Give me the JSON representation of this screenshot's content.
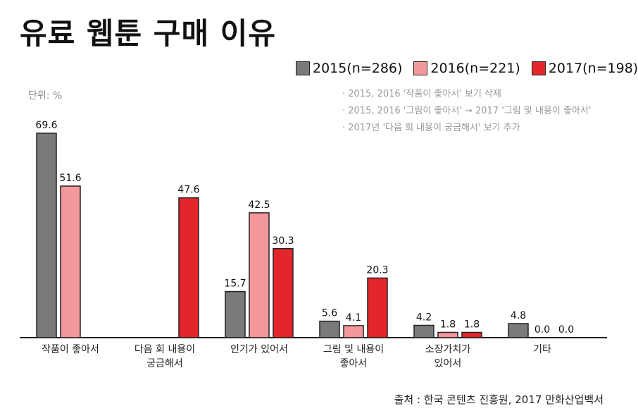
{
  "header": {
    "title": "유료 웹툰 구매 이유"
  },
  "unit_label": "단위: %",
  "notes": [
    "· 2015, 2016 '작품이 좋아서' 보기 삭제",
    "· 2015, 2016 '그림이 좋아서' → 2017 '그림 및 내용이 좋아서'",
    "· 2017년 '다음 회 내용이 궁금해서' 보기 추가"
  ],
  "source": "출처 : 한국 콘텐츠 진흥원, 2017 만화산업백서",
  "colors": {
    "s2015": "#7a7a7a",
    "s2016": "#f3989b",
    "s2017": "#e3262b"
  },
  "chart_data": {
    "type": "bar",
    "title": "유료 웹툰 구매 이유",
    "ylabel": "단위: %",
    "ylim": [
      0,
      72
    ],
    "grid": false,
    "legend_position": "top-right",
    "categories": [
      [
        "작품이 좋아서"
      ],
      [
        "다음 회 내용이",
        "궁금해서"
      ],
      [
        "인기가 있어서"
      ],
      [
        "그림 및 내용이",
        "좋아서"
      ],
      [
        "소장가치가",
        "있어서"
      ],
      [
        "기타"
      ]
    ],
    "series": [
      {
        "name": "2015(n=286)",
        "values": [
          69.6,
          null,
          15.7,
          5.6,
          4.2,
          4.8
        ],
        "labels": [
          "69.6",
          null,
          "15.7",
          "5.6",
          "4.2",
          "4.8"
        ]
      },
      {
        "name": "2016(n=221)",
        "values": [
          51.6,
          null,
          42.5,
          4.1,
          1.8,
          0.0
        ],
        "labels": [
          "51.6",
          null,
          "42.5",
          "4.1",
          "1.8",
          "0.0"
        ]
      },
      {
        "name": "2017(n=198)",
        "values": [
          null,
          47.6,
          30.3,
          20.3,
          1.8,
          0.0
        ],
        "labels": [
          null,
          "47.6",
          "30.3",
          "20.3",
          "1.8",
          "0.0"
        ]
      }
    ]
  }
}
